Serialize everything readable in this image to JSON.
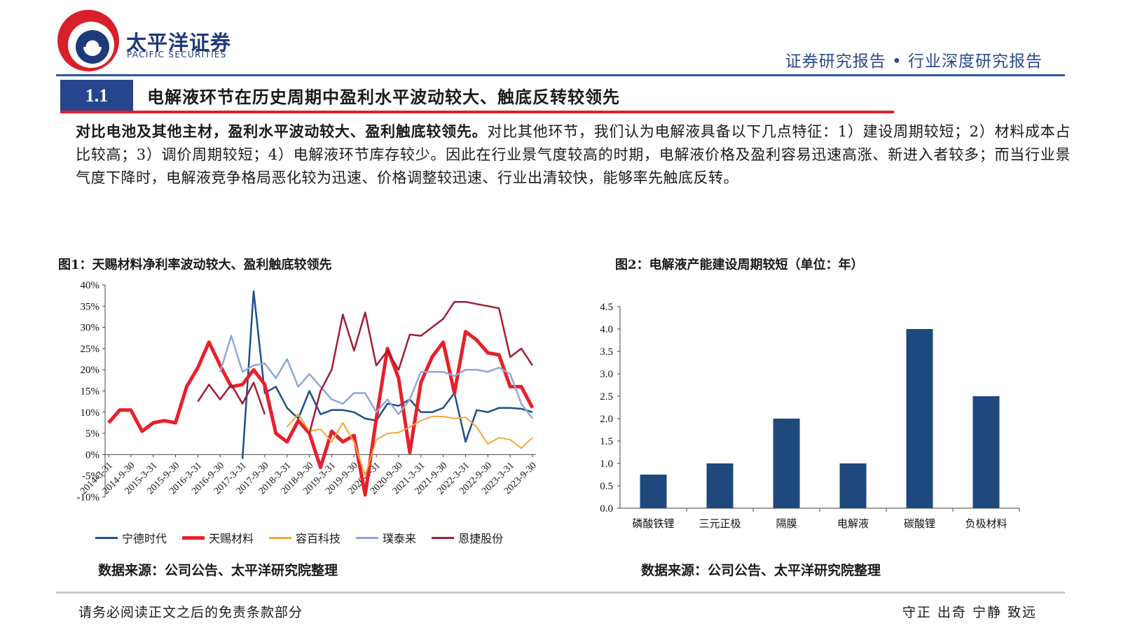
{
  "header": {
    "logo_cn": "太平洋证券",
    "logo_en": "PACIFIC SECURITIES",
    "report_type": "证券研究报告 • 行业深度研究报告",
    "logo_color": "#1f3a7a",
    "accent_red": "#d7202a"
  },
  "section": {
    "number": "1.1",
    "title": "电解液环节在历史周期中盈利水平波动较大、触底反转较领先"
  },
  "intro": {
    "bold": "对比电池及其他主材，盈利水平波动较大、盈利触底较领先。",
    "text": "对比其他环节，我们认为电解液具备以下几点特征：1）建设周期较短；2）材料成本占比较高；3）调价周期较短；4）电解液环节库存较少。因此在行业景气度较高的时期，电解液价格及盈利容易迅速高涨、新进入者较多；而当行业景气度下降时，电解液竞争格局恶化较为迅速、价格调整较迅速、行业出清较快，能够率先触底反转。"
  },
  "figures": {
    "fig1_title": "图1：天赐材料净利率波动较大、盈利触底较领先",
    "fig2_title": "图2：电解液产能建设周期较短（单位：年）",
    "fig1_source": "数据来源：公司公告、太平洋研究院整理",
    "fig2_source": "数据来源：公司公告、太平洋研究院整理"
  },
  "footer": {
    "left": "请务必阅读正文之后的免责条款部分",
    "right": "守正 出奇 宁静 致远"
  },
  "chart_data": [
    {
      "type": "line",
      "x": [
        "2014-3-31",
        "2014-6-30",
        "2014-9-30",
        "2014-12-31",
        "2015-3-31",
        "2015-6-30",
        "2015-9-30",
        "2015-12-31",
        "2016-3-31",
        "2016-6-30",
        "2016-9-30",
        "2016-12-31",
        "2017-3-31",
        "2017-6-30",
        "2017-9-30",
        "2017-12-31",
        "2018-3-31",
        "2018-6-30",
        "2018-9-30",
        "2018-12-31",
        "2019-3-31",
        "2019-6-30",
        "2019-9-30",
        "2019-12-31",
        "2020-3-31",
        "2020-6-30",
        "2020-9-30",
        "2020-12-31",
        "2021-3-31",
        "2021-6-30",
        "2021-9-30",
        "2021-12-31",
        "2022-3-31",
        "2022-6-30",
        "2022-9-30",
        "2022-12-31",
        "2023-3-31",
        "2023-6-30",
        "2023-9-30"
      ],
      "tick_labels": [
        "2014-3-31",
        "2014-9-30",
        "2015-3-31",
        "2015-9-30",
        "2016-3-31",
        "2016-9-30",
        "2017-3-31",
        "2017-9-30",
        "2018-3-31",
        "2018-9-30",
        "2019-3-31",
        "2019-9-30",
        "2020-3-31",
        "2020-9-30",
        "2021-3-31",
        "2021-9-30",
        "2022-3-31",
        "2022-9-30",
        "2023-3-31",
        "2023-9-30"
      ],
      "ylim": [
        -10,
        40
      ],
      "yticks": [
        "40%",
        "35%",
        "30%",
        "25%",
        "20%",
        "15%",
        "10%",
        "5%",
        "0%",
        "-5%",
        "-10%"
      ],
      "legend_position": "bottom",
      "series": [
        {
          "name": "宁德时代",
          "color": "#1f4e8c",
          "width": 2.5,
          "values": [
            null,
            null,
            null,
            null,
            null,
            null,
            null,
            null,
            null,
            null,
            null,
            null,
            -1,
            38.5,
            14.5,
            16,
            11,
            8.5,
            15,
            9.5,
            10.5,
            10.5,
            10,
            8.5,
            8,
            12,
            11.5,
            13,
            10,
            10,
            11,
            14.5,
            3,
            10.5,
            10,
            11,
            11,
            10.8,
            10
          ]
        },
        {
          "name": "天赐材料",
          "color": "#e8202a",
          "width": 5,
          "values": [
            7.5,
            10.5,
            10.5,
            5.5,
            7.5,
            8,
            7.5,
            16,
            20.5,
            26.5,
            21,
            16,
            16.5,
            20,
            16.5,
            5,
            3,
            8,
            5,
            -3,
            5.5,
            3,
            4.5,
            -9.5,
            8.5,
            25,
            18,
            0.5,
            17,
            23,
            26.5,
            14.5,
            29,
            27,
            24,
            23.5,
            16,
            16,
            11
          ]
        },
        {
          "name": "容百科技",
          "color": "#f5a53a",
          "width": 2,
          "values": [
            null,
            null,
            null,
            null,
            null,
            null,
            null,
            null,
            null,
            null,
            null,
            null,
            null,
            null,
            null,
            null,
            6.5,
            9.5,
            5.5,
            6,
            3,
            7.5,
            3,
            -5,
            3.5,
            5,
            5.2,
            6.5,
            8,
            9,
            9,
            8.5,
            8.8,
            6.5,
            2.5,
            4,
            3.5,
            1.5,
            4
          ]
        },
        {
          "name": "璞泰来",
          "color": "#8ea8d8",
          "width": 2.5,
          "values": [
            null,
            null,
            null,
            null,
            null,
            null,
            null,
            null,
            null,
            null,
            19.5,
            28,
            19.5,
            21,
            21.5,
            18,
            22.5,
            16,
            19,
            16,
            13,
            12,
            14.5,
            14.5,
            10,
            13,
            9.5,
            13,
            19.5,
            19.5,
            19.5,
            18.5,
            20,
            20,
            19.5,
            20.5,
            19,
            12,
            8.5
          ]
        },
        {
          "name": "恩捷股份",
          "color": "#a31c35",
          "width": 2.5,
          "values": [
            null,
            null,
            null,
            null,
            null,
            null,
            null,
            null,
            12.5,
            16.5,
            13,
            16.5,
            12,
            17,
            9.5,
            null,
            null,
            null,
            null,
            null,
            null,
            null,
            null,
            null,
            null,
            null,
            null,
            null,
            null,
            null,
            null,
            null,
            null,
            null,
            null,
            null,
            null,
            null,
            null
          ]
        },
        {
          "name": "恩捷股份",
          "color": "#a31c35",
          "width": 2.5,
          "values": [
            null,
            null,
            null,
            null,
            null,
            null,
            null,
            null,
            null,
            null,
            null,
            null,
            null,
            null,
            null,
            null,
            null,
            null,
            5,
            15,
            20,
            33,
            24.5,
            33.5,
            21,
            24.5,
            20,
            28.3,
            28,
            30,
            32,
            36,
            36,
            35.5,
            35,
            34.5,
            23,
            25,
            21
          ]
        }
      ]
    },
    {
      "type": "bar",
      "categories": [
        "磷酸铁锂",
        "三元正极",
        "隔膜",
        "电解液",
        "碳酸锂",
        "负极材料"
      ],
      "values": [
        0.75,
        1.0,
        2.0,
        1.0,
        4.0,
        2.5
      ],
      "ylim": [
        0,
        4.5
      ],
      "yticks": [
        "4.5",
        "4.0",
        "3.5",
        "3.0",
        "2.5",
        "2.0",
        "1.5",
        "1.0",
        "0.5",
        "0.0"
      ],
      "color": "#1f497d"
    }
  ],
  "legend1": [
    {
      "label": "宁德时代",
      "color": "#1f4e8c"
    },
    {
      "label": "天赐材料",
      "color": "#e8202a"
    },
    {
      "label": "容百科技",
      "color": "#f5a53a"
    },
    {
      "label": "璞泰来",
      "color": "#8ea8d8"
    },
    {
      "label": "恩捷股份",
      "color": "#a31c35"
    }
  ]
}
